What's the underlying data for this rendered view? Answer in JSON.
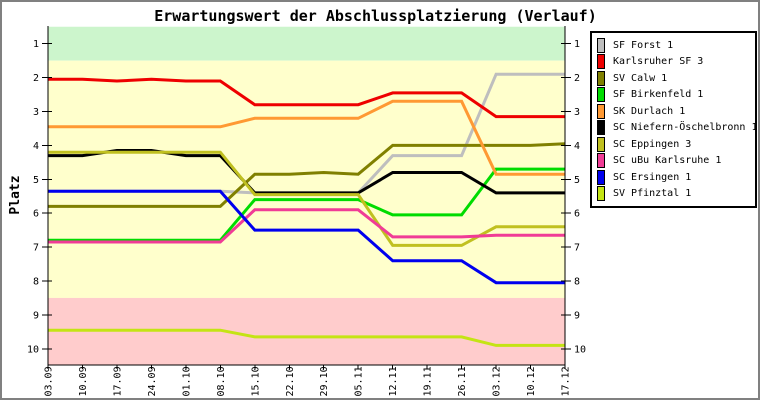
{
  "chart_data": {
    "type": "line",
    "title": "Erwartungswert der Abschlussplatzierung (Verlauf)",
    "ylabel": "Platz",
    "y_axis_inverted": true,
    "ylim": [
      0.5,
      10.5
    ],
    "grid": false,
    "legend_position": "top-right",
    "y_ticks": [
      1,
      2,
      3,
      4,
      5,
      6,
      7,
      8,
      9,
      10
    ],
    "x_tick_labels": [
      "03.09",
      "10.09",
      "17.09",
      "24.09",
      "01.10",
      "08.10",
      "15.10",
      "22.10",
      "29.10",
      "05.11",
      "12.11",
      "19.11",
      "26.11",
      "03.12",
      "10.12",
      "17.12"
    ],
    "bands": [
      {
        "name": "aufstieg-zone",
        "color": "#CCF5CC",
        "from": 0.5,
        "to": 1.5
      },
      {
        "name": "mittelfeld-zone",
        "color": "#FFFFCC",
        "from": 1.5,
        "to": 8.5
      },
      {
        "name": "abstieg-zone",
        "color": "#FFCCCC",
        "from": 8.5,
        "to": 10.5
      }
    ],
    "series": [
      {
        "name": "SF Forst 1",
        "color": "#BEBEBE",
        "values": [
          5.35,
          5.35,
          5.35,
          5.35,
          5.35,
          5.35,
          5.4,
          5.4,
          5.4,
          5.4,
          4.3,
          4.3,
          4.3,
          1.9,
          1.9,
          1.9
        ]
      },
      {
        "name": "Karlsruher SF 3",
        "color": "#EE0000",
        "values": [
          2.05,
          2.05,
          2.1,
          2.05,
          2.1,
          2.1,
          2.8,
          2.8,
          2.8,
          2.8,
          2.45,
          2.45,
          2.45,
          3.15,
          3.15,
          3.15
        ]
      },
      {
        "name": "SV Calw 1",
        "color": "#808000",
        "values": [
          5.8,
          5.8,
          5.8,
          5.8,
          5.8,
          5.8,
          4.85,
          4.85,
          4.8,
          4.85,
          4.0,
          4.0,
          4.0,
          4.0,
          4.0,
          3.95
        ]
      },
      {
        "name": "SF Birkenfeld 1",
        "color": "#00DC00",
        "values": [
          6.8,
          6.8,
          6.8,
          6.8,
          6.8,
          6.8,
          5.6,
          5.6,
          5.6,
          5.6,
          6.05,
          6.05,
          6.05,
          4.7,
          4.7,
          4.7
        ]
      },
      {
        "name": "SK Durlach 1",
        "color": "#FF9933",
        "values": [
          3.45,
          3.45,
          3.45,
          3.45,
          3.45,
          3.45,
          3.2,
          3.2,
          3.2,
          3.2,
          2.7,
          2.7,
          2.7,
          4.85,
          4.85,
          4.85
        ]
      },
      {
        "name": "SC Niefern-Öschelbronn 1",
        "color": "#000000",
        "values": [
          4.3,
          4.3,
          4.15,
          4.15,
          4.3,
          4.3,
          5.4,
          5.4,
          5.4,
          5.4,
          4.8,
          4.8,
          4.8,
          5.4,
          5.4,
          5.4
        ]
      },
      {
        "name": "SC Eppingen 3",
        "color": "#C0C020",
        "values": [
          4.2,
          4.2,
          4.2,
          4.2,
          4.2,
          4.2,
          5.45,
          5.45,
          5.45,
          5.45,
          6.95,
          6.95,
          6.95,
          6.4,
          6.4,
          6.4
        ]
      },
      {
        "name": "SC uBu Karlsruhe 1",
        "color": "#F03C96",
        "values": [
          6.85,
          6.85,
          6.85,
          6.85,
          6.85,
          6.85,
          5.9,
          5.9,
          5.9,
          5.9,
          6.7,
          6.7,
          6.7,
          6.65,
          6.65,
          6.65
        ]
      },
      {
        "name": "SC Ersingen 1",
        "color": "#0000EE",
        "values": [
          5.35,
          5.35,
          5.35,
          5.35,
          5.35,
          5.35,
          6.5,
          6.5,
          6.5,
          6.5,
          7.4,
          7.4,
          7.4,
          8.05,
          8.05,
          8.05
        ]
      },
      {
        "name": "SV Pfinztal 1",
        "color": "#C4E414",
        "values": [
          9.45,
          9.45,
          9.45,
          9.45,
          9.45,
          9.45,
          9.65,
          9.65,
          9.65,
          9.65,
          9.65,
          9.65,
          9.65,
          9.9,
          9.9,
          9.9
        ]
      }
    ]
  }
}
